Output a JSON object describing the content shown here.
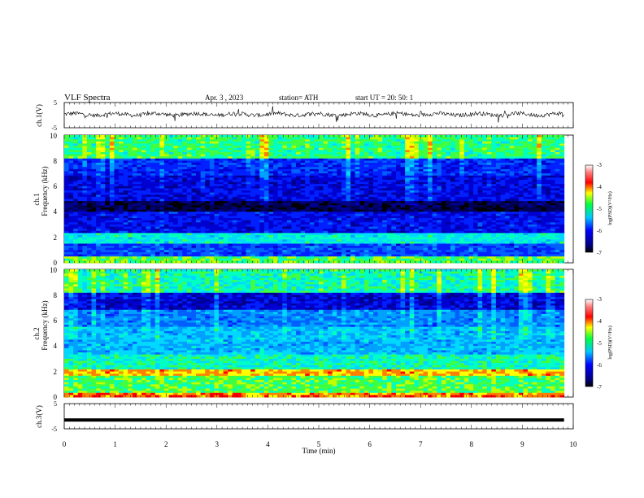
{
  "header": {
    "title": "VLF  Spectra",
    "date": "Apr. 3  , 2023",
    "station": "station= ATH",
    "start_ut": "start  UT  =    20: 50: 1"
  },
  "chart_data": [
    {
      "type": "line",
      "panel": "ch1-waveform",
      "ylabel": "ch.1(V)",
      "yticks": [
        "5",
        "-5"
      ],
      "ylim": [
        -5,
        5
      ],
      "description_level": 0.3,
      "color": "#000000"
    },
    {
      "type": "heatmap",
      "panel": "ch1-spectrogram",
      "ylabel": "Frequency  (kHz)",
      "channel_label": "ch.1",
      "yticks": [
        "0",
        "2",
        "4",
        "6",
        "8",
        "10"
      ],
      "ylim": [
        0,
        10
      ],
      "colorbar": {
        "label": "log(PSD)(V²/Hz)",
        "ticks": [
          "-3",
          "-4",
          "-5",
          "-6",
          "-7"
        ],
        "range": [
          -7,
          -3
        ]
      }
    },
    {
      "type": "heatmap",
      "panel": "ch2-spectrogram",
      "ylabel": "Frequency  (kHz)",
      "channel_label": "ch.2",
      "yticks": [
        "0",
        "2",
        "4",
        "6",
        "8",
        "10"
      ],
      "ylim": [
        0,
        10
      ],
      "colorbar": {
        "label": "log(PSD)(V²/Hz)",
        "ticks": [
          "-3",
          "-4",
          "-5",
          "-6",
          "-7"
        ],
        "range": [
          -7,
          -3
        ]
      }
    },
    {
      "type": "line",
      "panel": "ch3-waveform",
      "ylabel": "ch.3(V)",
      "yticks": [
        "5",
        "-5"
      ],
      "ylim": [
        -5,
        5
      ],
      "level": -1.5,
      "color": "#000000"
    }
  ],
  "xaxis": {
    "label": "Time  (min)",
    "ticks": [
      "0",
      "1",
      "2",
      "3",
      "4",
      "5",
      "6",
      "7",
      "8",
      "9",
      "10"
    ],
    "xlim": [
      0,
      10
    ],
    "data_end": 9.82
  }
}
